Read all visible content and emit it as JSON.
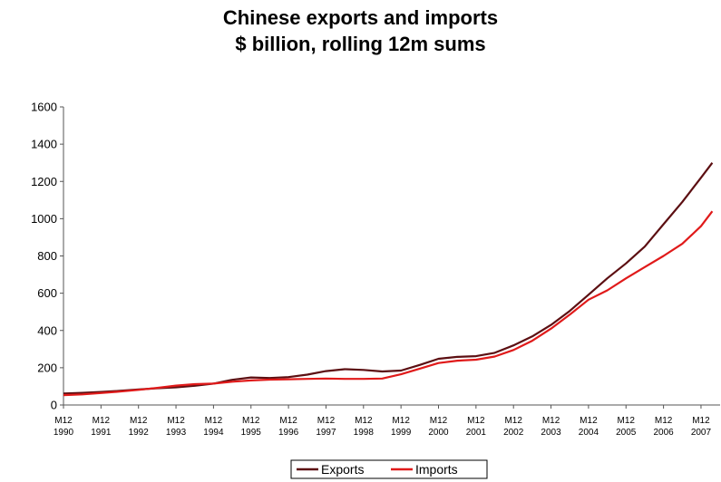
{
  "chart_data": {
    "type": "line",
    "title": "Chinese exports and imports",
    "subtitle": "$ billion, rolling 12m sums",
    "xlabel": "",
    "ylabel": "",
    "ylim": [
      0,
      1600
    ],
    "yticks": [
      0,
      200,
      400,
      600,
      800,
      1000,
      1200,
      1400,
      1600
    ],
    "xticks": [
      {
        "line1": "M12",
        "line2": "1990"
      },
      {
        "line1": "M12",
        "line2": "1991"
      },
      {
        "line1": "M12",
        "line2": "1992"
      },
      {
        "line1": "M12",
        "line2": "1993"
      },
      {
        "line1": "M12",
        "line2": "1994"
      },
      {
        "line1": "M12",
        "line2": "1995"
      },
      {
        "line1": "M12",
        "line2": "1996"
      },
      {
        "line1": "M12",
        "line2": "1997"
      },
      {
        "line1": "M12",
        "line2": "1998"
      },
      {
        "line1": "M12",
        "line2": "1999"
      },
      {
        "line1": "M12",
        "line2": "2000"
      },
      {
        "line1": "M12",
        "line2": "2001"
      },
      {
        "line1": "M12",
        "line2": "2002"
      },
      {
        "line1": "M12",
        "line2": "2003"
      },
      {
        "line1": "M12",
        "line2": "2004"
      },
      {
        "line1": "M12",
        "line2": "2005"
      },
      {
        "line1": "M12",
        "line2": "2006"
      },
      {
        "line1": "M12",
        "line2": "2007"
      }
    ],
    "grid": false,
    "legend_position": "bottom-center",
    "series": [
      {
        "name": "Exports",
        "color": "#5c0f12",
        "x": [
          1990,
          1990.5,
          1991,
          1991.5,
          1992,
          1992.5,
          1993,
          1993.5,
          1994,
          1994.5,
          1995,
          1995.5,
          1996,
          1996.5,
          1997,
          1997.5,
          1998,
          1998.5,
          1999,
          1999.5,
          2000,
          2000.5,
          2001,
          2001.5,
          2002,
          2002.5,
          2003,
          2003.5,
          2004,
          2004.5,
          2005,
          2005.5,
          2006,
          2006.5,
          2007,
          2007.3
        ],
        "values": [
          62,
          65,
          70,
          76,
          83,
          90,
          95,
          103,
          115,
          135,
          148,
          145,
          150,
          163,
          182,
          192,
          188,
          180,
          185,
          215,
          248,
          258,
          262,
          280,
          320,
          368,
          430,
          505,
          592,
          680,
          760,
          850,
          970,
          1090,
          1220,
          1300
        ]
      },
      {
        "name": "Imports",
        "color": "#e01a1a",
        "x": [
          1990,
          1990.5,
          1991,
          1991.5,
          1992,
          1992.5,
          1993,
          1993.5,
          1994,
          1994.5,
          1995,
          1995.5,
          1996,
          1996.5,
          1997,
          1997.5,
          1998,
          1998.5,
          1999,
          1999.5,
          2000,
          2000.5,
          2001,
          2001.5,
          2002,
          2002.5,
          2003,
          2003.5,
          2004,
          2004.5,
          2005,
          2005.5,
          2006,
          2006.5,
          2007,
          2007.3
        ],
        "values": [
          53,
          57,
          64,
          72,
          81,
          92,
          104,
          112,
          115,
          125,
          132,
          136,
          138,
          140,
          142,
          140,
          140,
          142,
          165,
          195,
          225,
          238,
          243,
          260,
          295,
          345,
          410,
          485,
          565,
          615,
          680,
          740,
          800,
          865,
          960,
          1040
        ]
      }
    ]
  }
}
